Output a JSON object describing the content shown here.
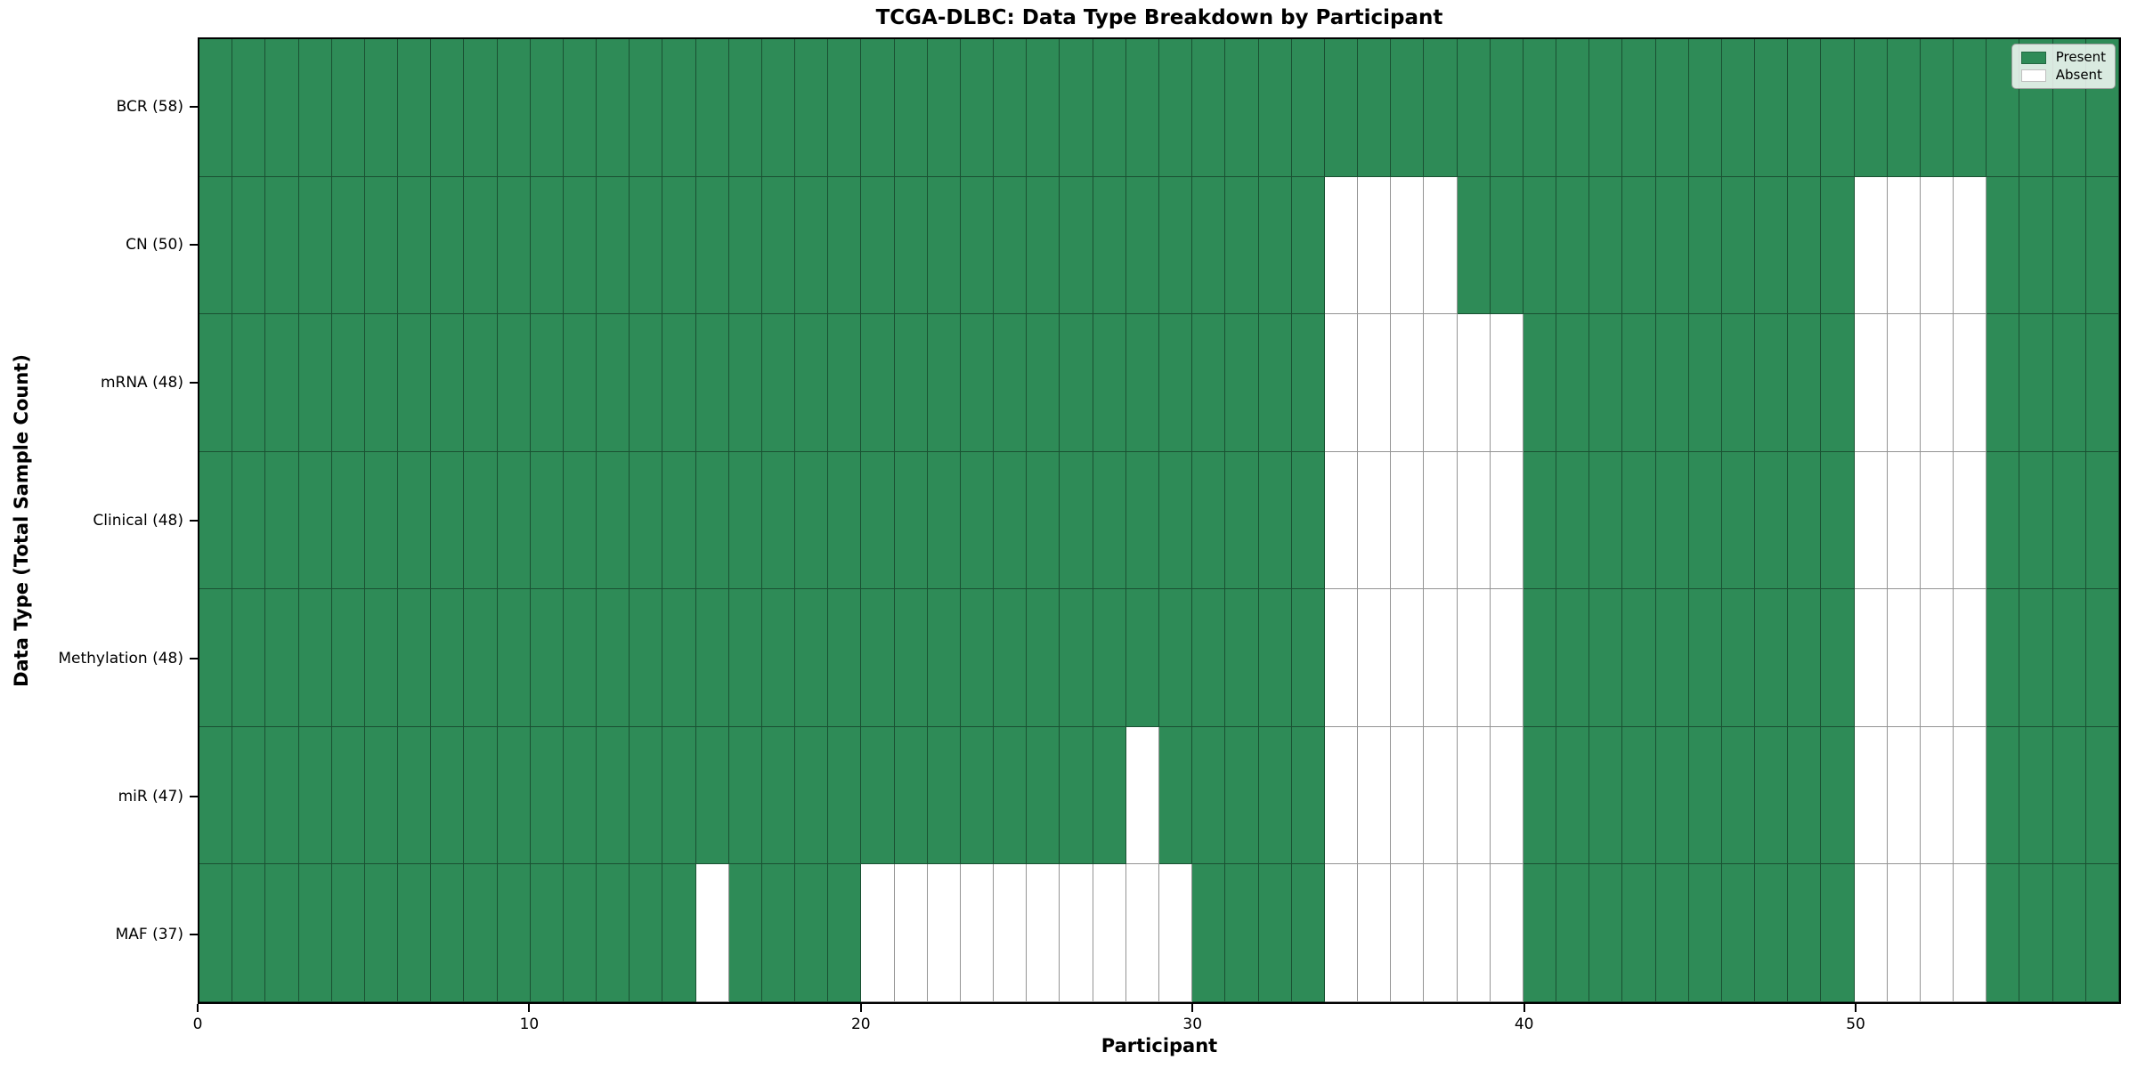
{
  "title": "TCGA-DLBC: Data Type Breakdown by Participant",
  "xlabel": "Participant",
  "ylabel": "Data Type (Total Sample Count)",
  "legend": {
    "present_label": "Present",
    "absent_label": "Absent"
  },
  "colors": {
    "present": "#2E8B57",
    "absent": "#FFFFFF",
    "cell_edge": "rgba(0,0,0,0.42)"
  },
  "chart_data": {
    "type": "heatmap",
    "title": "TCGA-DLBC: Data Type Breakdown by Participant",
    "xlabel": "Participant",
    "ylabel": "Data Type (Total Sample Count)",
    "legend_position": "upper right",
    "grid": true,
    "n_participants": 58,
    "x_ticks": [
      0,
      10,
      20,
      30,
      40,
      50
    ],
    "x_range": [
      0,
      58
    ],
    "value_encoding": {
      "present": 1,
      "absent": 0
    },
    "rows": [
      {
        "label": "BCR (58)",
        "data_type": "BCR",
        "total": 58,
        "absent_participants": []
      },
      {
        "label": "CN (50)",
        "data_type": "CN",
        "total": 50,
        "absent_participants": [
          34,
          35,
          36,
          37,
          50,
          51,
          52,
          53
        ]
      },
      {
        "label": "mRNA (48)",
        "data_type": "mRNA",
        "total": 48,
        "absent_participants": [
          34,
          35,
          36,
          37,
          38,
          39,
          50,
          51,
          52,
          53
        ]
      },
      {
        "label": "Clinical (48)",
        "data_type": "Clinical",
        "total": 48,
        "absent_participants": [
          34,
          35,
          36,
          37,
          38,
          39,
          50,
          51,
          52,
          53
        ]
      },
      {
        "label": "Methylation (48)",
        "data_type": "Methylation",
        "total": 48,
        "absent_participants": [
          34,
          35,
          36,
          37,
          38,
          39,
          50,
          51,
          52,
          53
        ]
      },
      {
        "label": "miR (47)",
        "data_type": "miR",
        "total": 47,
        "absent_participants": [
          28,
          34,
          35,
          36,
          37,
          38,
          39,
          50,
          51,
          52,
          53
        ]
      },
      {
        "label": "MAF (37)",
        "data_type": "MAF",
        "total": 37,
        "absent_participants": [
          15,
          20,
          21,
          22,
          23,
          24,
          25,
          26,
          27,
          28,
          29,
          34,
          35,
          36,
          37,
          38,
          39,
          50,
          51,
          52,
          53
        ]
      }
    ],
    "legend_entries": [
      {
        "label": "Present",
        "color": "#2E8B57"
      },
      {
        "label": "Absent",
        "color": "#FFFFFF"
      }
    ]
  }
}
